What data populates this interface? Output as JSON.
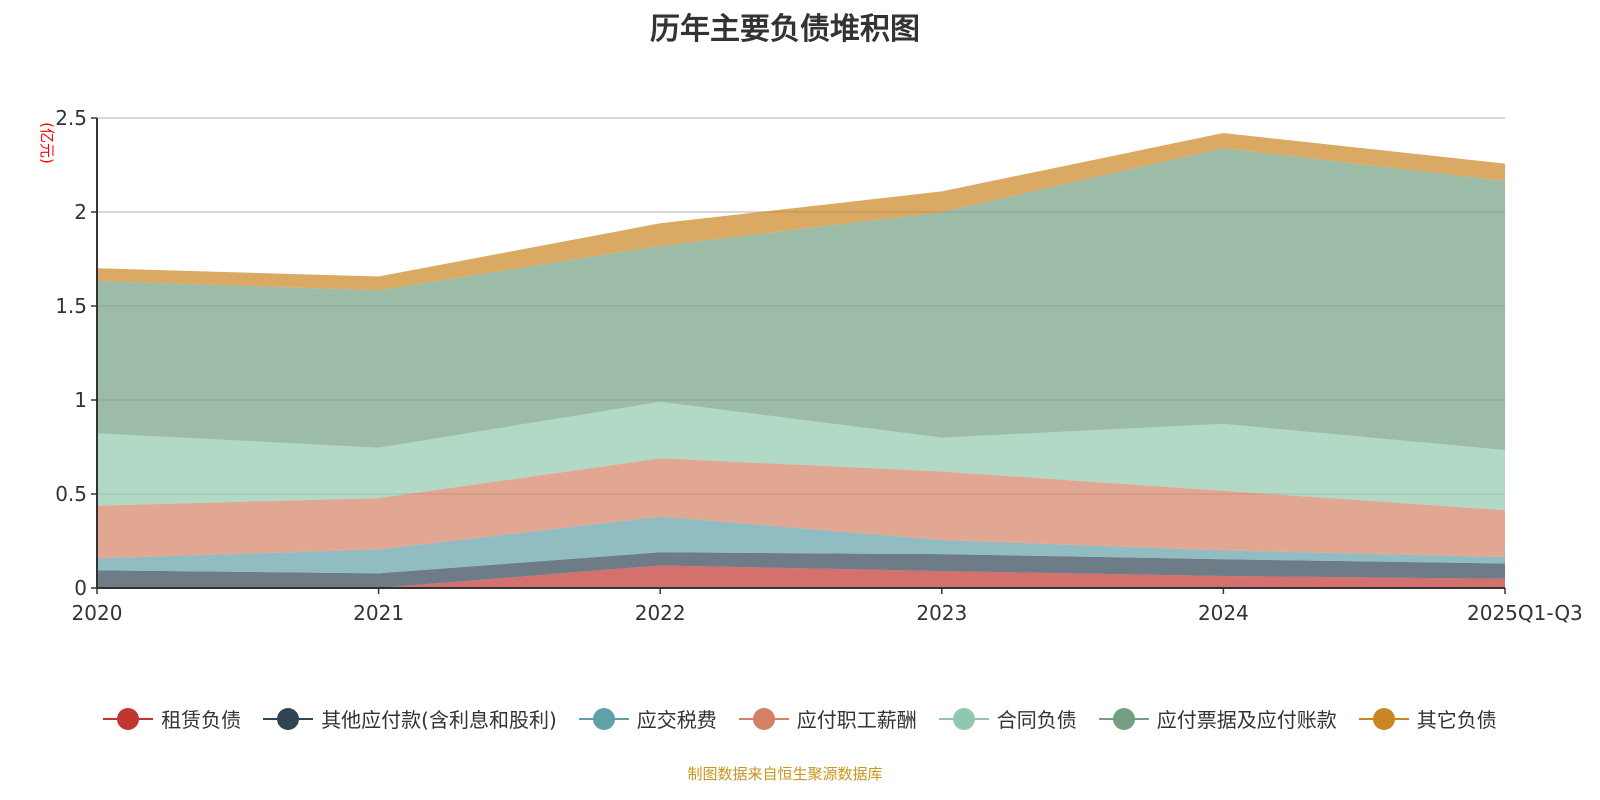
{
  "title": "历年主要负债堆积图",
  "source": "制图数据来自恒生聚源数据库",
  "chart_data": {
    "type": "area",
    "stacked": true,
    "title": "历年主要负债堆积图",
    "ylabel": "(亿元)",
    "xlabel": "",
    "ylim": [
      0,
      2.5
    ],
    "yticks": [
      "0",
      "0.5",
      "1",
      "1.5",
      "2",
      "2.5"
    ],
    "grid": true,
    "legend_position": "bottom",
    "categories": [
      "2020",
      "2021",
      "2022",
      "2023",
      "2024",
      "2025Q1-Q3"
    ],
    "series": [
      {
        "name": "租赁负债",
        "color": "#c23531",
        "values": [
          0.005,
          0,
          0.12,
          0.09,
          0.064,
          0.049
        ]
      },
      {
        "name": "其他应付款(含利息和股利)",
        "color": "#2f4554",
        "values": [
          0.089,
          0.078,
          0.07,
          0.09,
          0.089,
          0.081
        ]
      },
      {
        "name": "应交税费",
        "color": "#61a0a8",
        "values": [
          0.064,
          0.127,
          0.19,
          0.075,
          0.047,
          0.035
        ]
      },
      {
        "name": "应付职工薪酬",
        "color": "#d48265",
        "values": [
          0.28,
          0.273,
          0.31,
          0.365,
          0.317,
          0.249
        ]
      },
      {
        "name": "合同负债",
        "color": "#91c7ae",
        "values": [
          0.385,
          0.268,
          0.3,
          0.18,
          0.356,
          0.32
        ]
      },
      {
        "name": "应付票据及应付账款",
        "color": "#749f83",
        "values": [
          0.81,
          0.838,
          0.83,
          1.2,
          1.467,
          1.431
        ]
      },
      {
        "name": "其它负债",
        "color": "#ca8622",
        "values": [
          0.068,
          0.073,
          0.12,
          0.11,
          0.08,
          0.092
        ]
      }
    ]
  }
}
